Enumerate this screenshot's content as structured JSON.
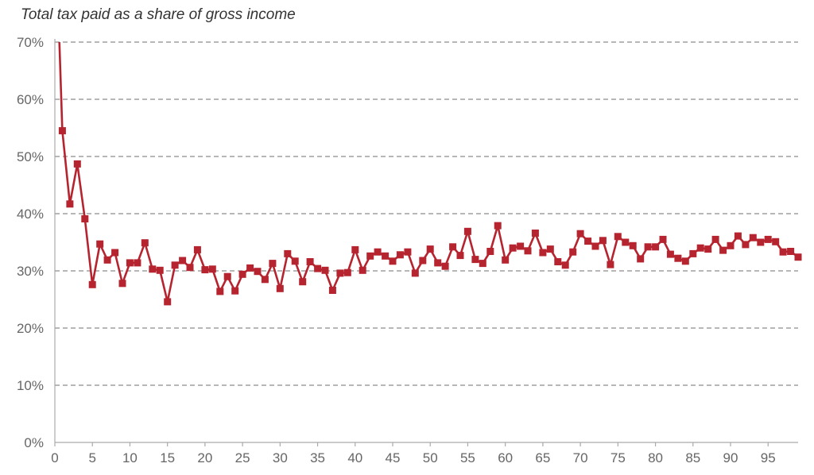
{
  "chart_data": {
    "type": "line",
    "title": "Total tax paid as a share of gross income",
    "xlabel": "",
    "ylabel": "",
    "xlim": [
      0,
      99
    ],
    "ylim": [
      0,
      70
    ],
    "grid": "horizontal-dashed",
    "x_ticks": [
      0,
      5,
      10,
      15,
      20,
      25,
      30,
      35,
      40,
      45,
      50,
      55,
      60,
      65,
      70,
      75,
      80,
      85,
      90,
      95
    ],
    "y_ticks": [
      0,
      10,
      20,
      30,
      40,
      50,
      60,
      70
    ],
    "y_tick_labels": [
      "0%",
      "10%",
      "20%",
      "30%",
      "40%",
      "50%",
      "60%",
      "70%"
    ],
    "series": [
      {
        "color": "#b5242f",
        "marker": "square",
        "x": [
          0.6,
          1,
          2,
          3,
          4,
          5,
          6,
          7,
          8,
          9,
          10,
          11,
          12,
          13,
          14,
          15,
          16,
          17,
          18,
          19,
          20,
          21,
          22,
          23,
          24,
          25,
          26,
          27,
          28,
          29,
          30,
          31,
          32,
          33,
          34,
          35,
          36,
          37,
          38,
          39,
          40,
          41,
          42,
          43,
          44,
          45,
          46,
          47,
          48,
          49,
          50,
          51,
          52,
          53,
          54,
          55,
          56,
          57,
          58,
          59,
          60,
          61,
          62,
          63,
          64,
          65,
          66,
          67,
          68,
          69,
          70,
          71,
          72,
          73,
          74,
          75,
          76,
          77,
          78,
          79,
          80,
          81,
          82,
          83,
          84,
          85,
          86,
          87,
          88,
          89,
          90,
          91,
          92,
          93,
          94,
          95,
          96,
          97,
          98,
          99
        ],
        "values": [
          70,
          54.5,
          41.7,
          48.7,
          39.1,
          27.6,
          34.7,
          31.9,
          33.2,
          27.8,
          31.4,
          31.4,
          34.9,
          30.3,
          30.1,
          24.6,
          31.0,
          31.8,
          30.6,
          33.7,
          30.2,
          30.3,
          26.4,
          29.0,
          26.5,
          29.4,
          30.5,
          29.9,
          28.5,
          31.3,
          26.9,
          33.0,
          31.7,
          28.1,
          31.6,
          30.4,
          30.1,
          26.6,
          29.6,
          29.7,
          33.7,
          30.1,
          32.6,
          33.3,
          32.6,
          31.7,
          32.8,
          33.3,
          29.6,
          31.8,
          33.8,
          31.4,
          30.8,
          34.2,
          32.7,
          36.9,
          32.0,
          31.3,
          33.4,
          37.9,
          31.9,
          34.0,
          34.3,
          33.5,
          36.6,
          33.2,
          33.8,
          31.6,
          31.0,
          33.3,
          36.5,
          35.2,
          34.3,
          35.3,
          31.1,
          36.0,
          35.0,
          34.4,
          32.1,
          34.2,
          34.2,
          35.5,
          32.9,
          32.2,
          31.7,
          33.0,
          34.0,
          33.8,
          35.5,
          33.6,
          34.4,
          36.1,
          34.6,
          35.8,
          35.0,
          35.5,
          35.1,
          33.3,
          33.4,
          32.4
        ]
      }
    ]
  }
}
